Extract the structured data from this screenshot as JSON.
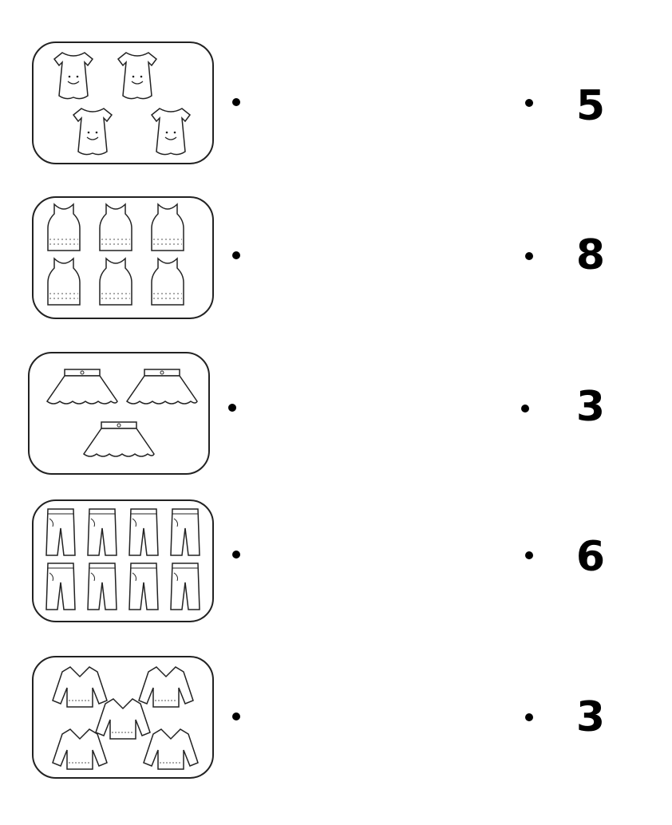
{
  "rows": [
    {
      "item": "dress",
      "count": 4,
      "number": "5"
    },
    {
      "item": "tank-top",
      "count": 6,
      "number": "8"
    },
    {
      "item": "skirt",
      "count": 3,
      "number": "3"
    },
    {
      "item": "pants",
      "count": 8,
      "number": "6"
    },
    {
      "item": "sweater",
      "count": 5,
      "number": "3"
    }
  ]
}
